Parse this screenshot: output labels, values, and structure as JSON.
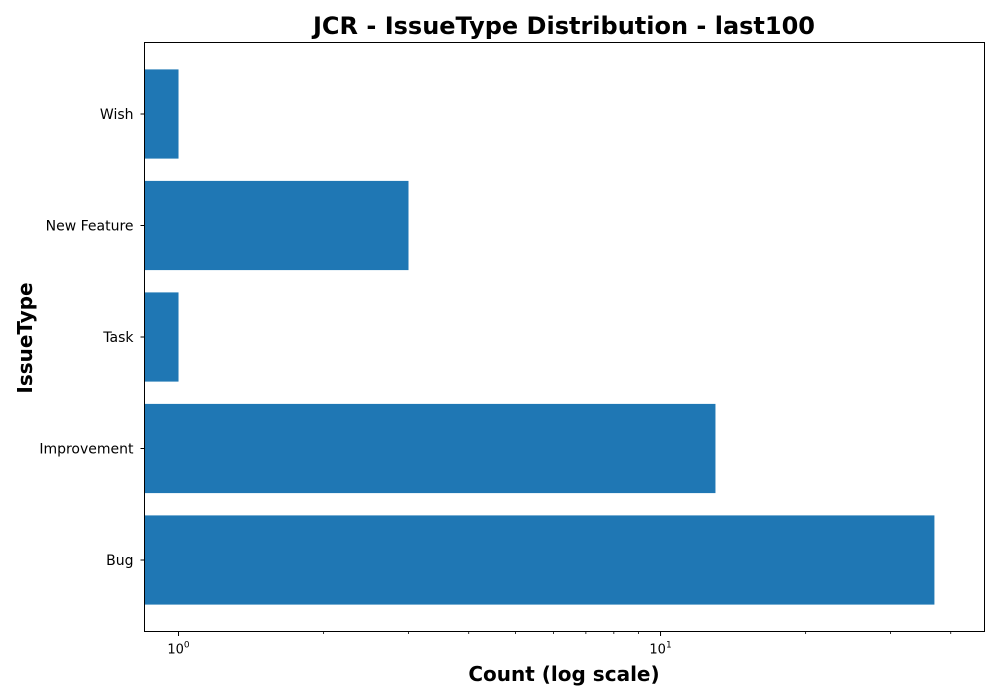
{
  "chart_data": {
    "type": "bar",
    "orientation": "horizontal",
    "title": "JCR - IssueType Distribution - last100",
    "xlabel": "Count (log scale)",
    "ylabel": "IssueType",
    "x_scale": "log",
    "xlim": [
      0.85,
      47
    ],
    "x_ticks": [
      {
        "value": 1,
        "base": "10",
        "exp": "0"
      },
      {
        "value": 10,
        "base": "10",
        "exp": "1"
      }
    ],
    "x_minor_ticks": [
      2,
      3,
      4,
      5,
      6,
      7,
      8,
      9,
      20,
      30,
      40
    ],
    "categories": [
      "Bug",
      "Improvement",
      "Task",
      "New Feature",
      "Wish"
    ],
    "values": [
      37,
      13,
      1,
      3,
      1
    ],
    "color": "#1f77b4",
    "grid": false,
    "legend": "none"
  }
}
